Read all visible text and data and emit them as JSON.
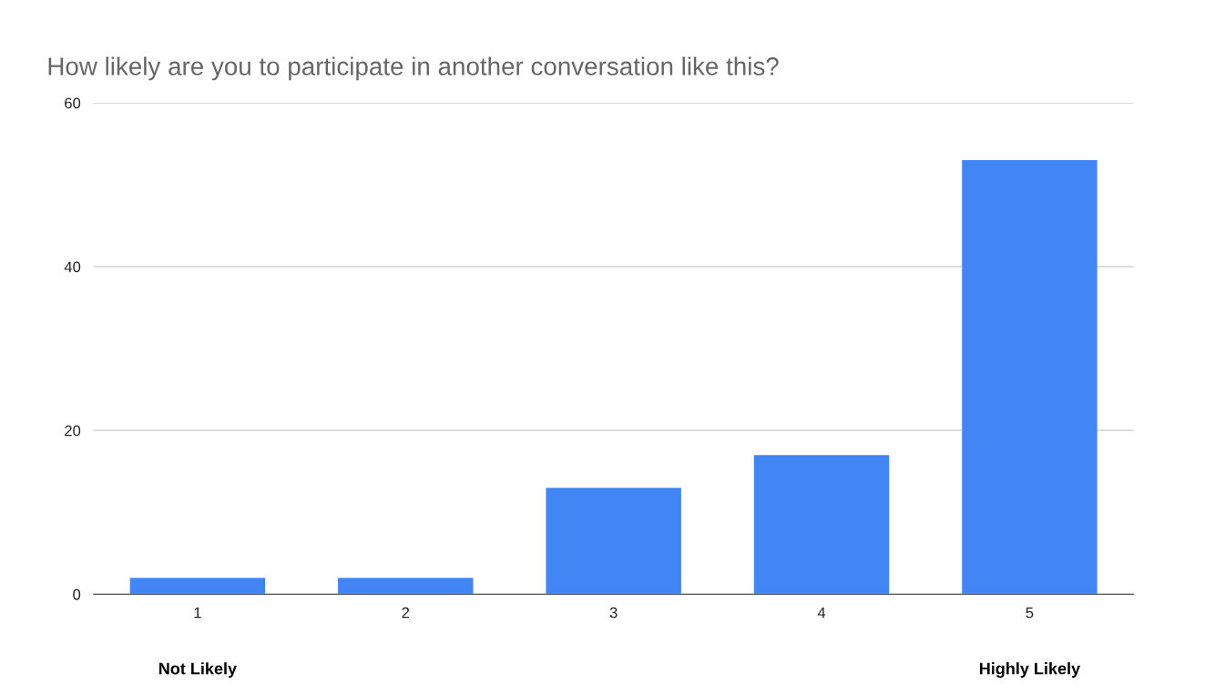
{
  "chart_data": {
    "type": "bar",
    "title": "How likely are you to participate in another conversation like this?",
    "categories": [
      "1",
      "2",
      "3",
      "4",
      "5"
    ],
    "values": [
      2,
      2,
      13,
      17,
      53
    ],
    "color": "#4285f4",
    "ylim": [
      0,
      60
    ],
    "yticks": [
      0,
      20,
      40,
      60
    ],
    "grid": "y",
    "annotations": [
      "Not Likely",
      "Highly Likely"
    ]
  }
}
